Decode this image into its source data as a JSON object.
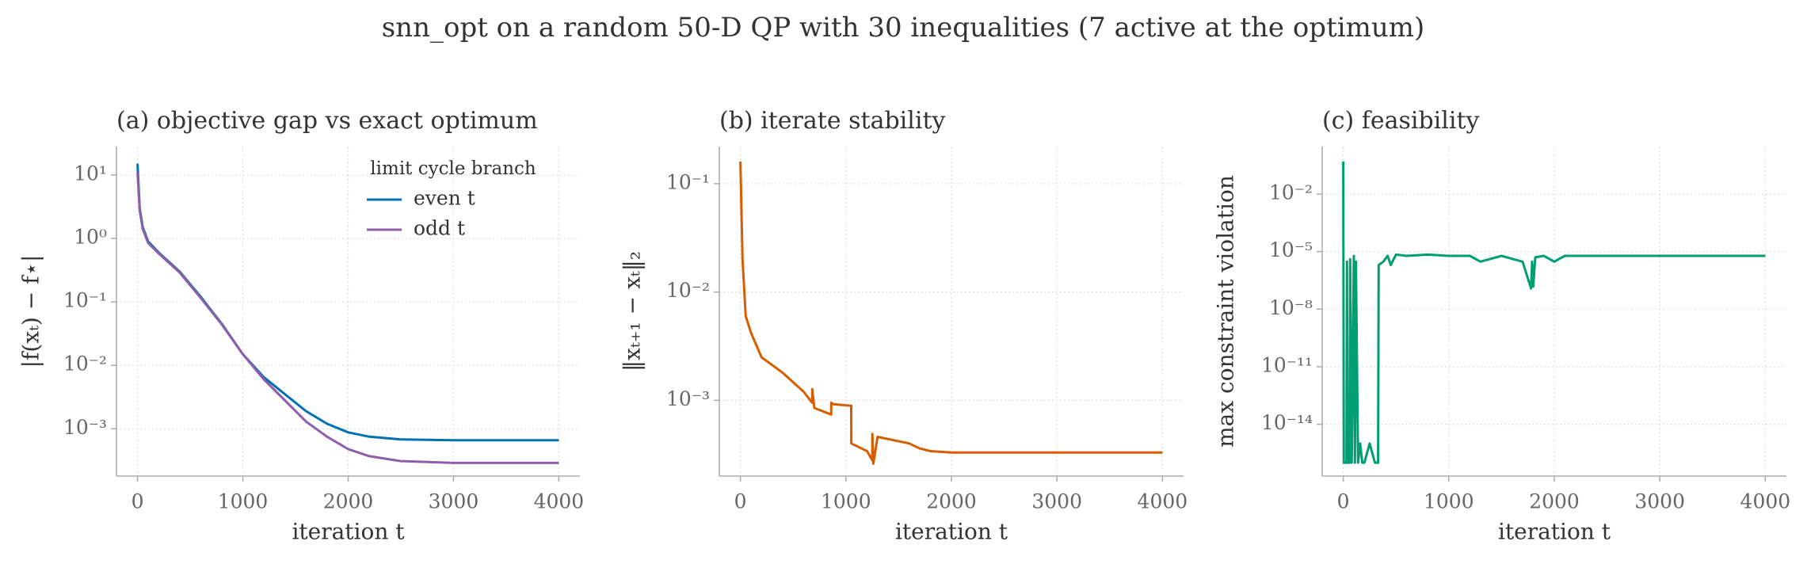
{
  "title": "snn_opt on a random 50-D QP with 30 inequalities (7 active at the optimum)",
  "chart_data": [
    {
      "type": "line",
      "title": "(a) objective gap vs exact optimum",
      "xlabel": "iteration t",
      "ylabel": "|f(xₜ) − f⋆|",
      "yscale": "log",
      "grid": true,
      "x": [
        0,
        20,
        50,
        100,
        200,
        400,
        600,
        800,
        1000,
        1200,
        1400,
        1600,
        1800,
        2000,
        2200,
        2500,
        3000,
        3500,
        4000
      ],
      "series": [
        {
          "name": "even t",
          "color": "#0072b2",
          "values": [
            15,
            3,
            1.5,
            0.9,
            0.6,
            0.3,
            0.12,
            0.045,
            0.015,
            0.0065,
            0.0035,
            0.0019,
            0.0012,
            0.00088,
            0.00075,
            0.00068,
            0.00066,
            0.00066,
            0.00066
          ]
        },
        {
          "name": "odd t",
          "color": "#8e5ea8",
          "values": [
            11,
            2.8,
            1.4,
            0.85,
            0.58,
            0.29,
            0.115,
            0.044,
            0.015,
            0.006,
            0.0028,
            0.0013,
            0.00075,
            0.00048,
            0.00037,
            0.00031,
            0.00029,
            0.00029,
            0.00029
          ]
        }
      ],
      "legend": {
        "title": "limit cycle branch",
        "loc": "upper right"
      },
      "xlim": [
        -200,
        4200
      ],
      "xticks": [
        0,
        1000,
        2000,
        3000,
        4000
      ],
      "ylim": [
        0.00018,
        28
      ],
      "yticks": [
        {
          "value": 0.001,
          "label": "10⁻³"
        },
        {
          "value": 0.01,
          "label": "10⁻²"
        },
        {
          "value": 0.1,
          "label": "10⁻¹"
        },
        {
          "value": 1,
          "label": "10⁰"
        },
        {
          "value": 10,
          "label": "10¹"
        }
      ]
    },
    {
      "type": "line",
      "title": "(b) iterate stability",
      "xlabel": "iteration t",
      "ylabel": "‖xₜ₊₁ − xₜ‖₂",
      "yscale": "log",
      "grid": true,
      "color": "#d55e00",
      "x": [
        0,
        20,
        50,
        100,
        200,
        400,
        600,
        680,
        681,
        700,
        860,
        861,
        880,
        1050,
        1051,
        1200,
        1250,
        1251,
        1260,
        1300,
        1600,
        1700,
        1800,
        2000,
        4000
      ],
      "values": [
        0.16,
        0.02,
        0.006,
        0.0042,
        0.0025,
        0.0018,
        0.0012,
        0.00095,
        0.00127,
        0.00085,
        0.00074,
        0.00095,
        0.00092,
        0.00089,
        0.0004,
        0.00034,
        0.00028,
        0.00049,
        0.00026,
        0.00046,
        0.0004,
        0.00036,
        0.00034,
        0.00033,
        0.00033
      ],
      "xlim": [
        -200,
        4200
      ],
      "xticks": [
        0,
        1000,
        2000,
        3000,
        4000
      ],
      "ylim": [
        0.0002,
        0.22
      ],
      "yticks": [
        {
          "value": 0.001,
          "label": "10⁻³"
        },
        {
          "value": 0.01,
          "label": "10⁻²"
        },
        {
          "value": 0.1,
          "label": "10⁻¹"
        }
      ]
    },
    {
      "type": "line",
      "title": "(c) feasibility",
      "xlabel": "iteration t",
      "ylabel": "max constraint violation",
      "yscale": "log",
      "grid": true,
      "color": "#009e73",
      "x": [
        0,
        5,
        10,
        30,
        35,
        40,
        60,
        65,
        80,
        100,
        110,
        120,
        140,
        160,
        180,
        200,
        250,
        300,
        330,
        335,
        380,
        420,
        450,
        500,
        600,
        800,
        1000,
        1200,
        1300,
        1500,
        1700,
        1780,
        1790,
        1800,
        1820,
        1900,
        2000,
        2100,
        2500,
        3000,
        4000
      ],
      "values": [
        0.5,
        1e-16,
        1e-16,
        1e-16,
        3e-06,
        1e-16,
        1e-16,
        4e-06,
        1e-16,
        6e-06,
        1e-16,
        3e-06,
        1e-16,
        1e-15,
        1e-16,
        1e-16,
        1e-15,
        1e-16,
        1e-16,
        2e-06,
        3e-06,
        6e-06,
        2e-06,
        7e-06,
        6e-06,
        7e-06,
        6e-06,
        6e-06,
        3e-06,
        6e-06,
        3e-06,
        1.2e-07,
        3e-06,
        1.5e-07,
        5e-06,
        6e-06,
        3e-06,
        6e-06,
        6e-06,
        6e-06,
        6e-06
      ],
      "xlim": [
        -200,
        4200
      ],
      "xticks": [
        0,
        1000,
        2000,
        3000,
        4000
      ],
      "ylim": [
        2e-17,
        3
      ],
      "yticks": [
        {
          "value": 1e-14,
          "label": "10⁻¹⁴"
        },
        {
          "value": 1e-11,
          "label": "10⁻¹¹"
        },
        {
          "value": 1e-08,
          "label": "10⁻⁸"
        },
        {
          "value": 1e-05,
          "label": "10⁻⁵"
        },
        {
          "value": 0.01,
          "label": "10⁻²"
        }
      ]
    }
  ]
}
